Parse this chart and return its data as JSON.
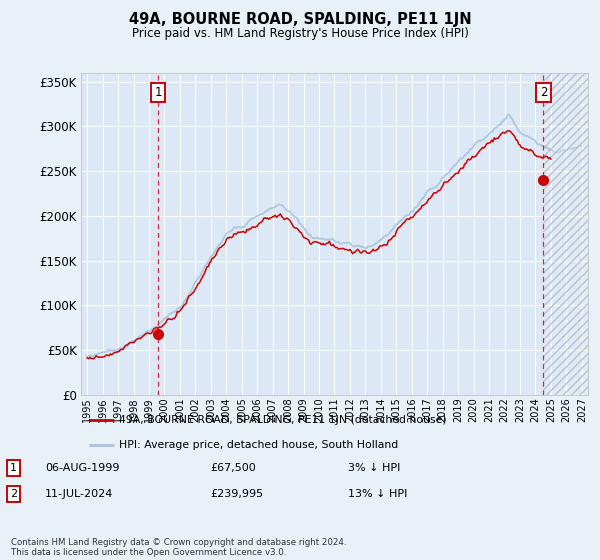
{
  "title": "49A, BOURNE ROAD, SPALDING, PE11 1JN",
  "subtitle": "Price paid vs. HM Land Registry's House Price Index (HPI)",
  "ylim": [
    0,
    360000
  ],
  "yticks": [
    0,
    50000,
    100000,
    150000,
    200000,
    250000,
    300000,
    350000
  ],
  "ytick_labels": [
    "£0",
    "£50K",
    "£100K",
    "£150K",
    "£200K",
    "£250K",
    "£300K",
    "£350K"
  ],
  "xlim_left": 1994.6,
  "xlim_right": 2027.4,
  "sale1_date_x": 1999.58,
  "sale1_price": 67500,
  "sale2_date_x": 2024.52,
  "sale2_price": 239995,
  "hatch_start": 2024.52,
  "legend_line1": "49A, BOURNE ROAD, SPALDING, PE11 1JN (detached house)",
  "legend_line2": "HPI: Average price, detached house, South Holland",
  "annotation1_label": "1",
  "annotation1_date": "06-AUG-1999",
  "annotation1_price": "£67,500",
  "annotation1_rel": "3% ↓ HPI",
  "annotation2_label": "2",
  "annotation2_date": "11-JUL-2024",
  "annotation2_price": "£239,995",
  "annotation2_rel": "13% ↓ HPI",
  "footer": "Contains HM Land Registry data © Crown copyright and database right 2024.\nThis data is licensed under the Open Government Licence v3.0.",
  "hpi_color": "#a8c4e0",
  "price_color": "#cc0000",
  "bg_color": "#e8f0f8",
  "plot_bg": "#dce8f5",
  "grid_color": "#ffffff",
  "sale_line_color": "#cc0000",
  "hatch_bg": "#d0d8e4",
  "hatch_line_color": "#b0b8c8"
}
